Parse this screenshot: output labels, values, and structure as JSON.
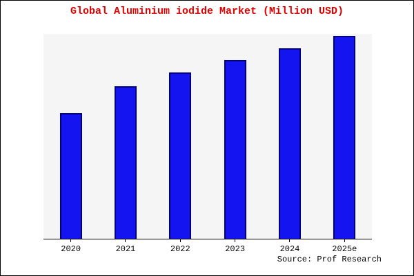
{
  "chart_data": {
    "type": "bar",
    "title": "Global Aluminium iodide Market (Million USD)",
    "categories": [
      "2020",
      "2021",
      "2022",
      "2023",
      "2024",
      "2025e"
    ],
    "values": [
      62,
      75,
      82,
      88,
      94,
      100
    ],
    "xlabel": "",
    "ylabel": "",
    "ylim": [
      0,
      101
    ],
    "grid": false,
    "legend": false,
    "y_axis_labels_visible": false,
    "colors": {
      "bar_fill": "#1414f0",
      "bar_border": "#000080",
      "title": "#dd0000",
      "plot_bg": "#f5f5f5",
      "page_bg": "#ffffff",
      "frame_border": "#000000"
    }
  },
  "source": "Source: Prof Research"
}
